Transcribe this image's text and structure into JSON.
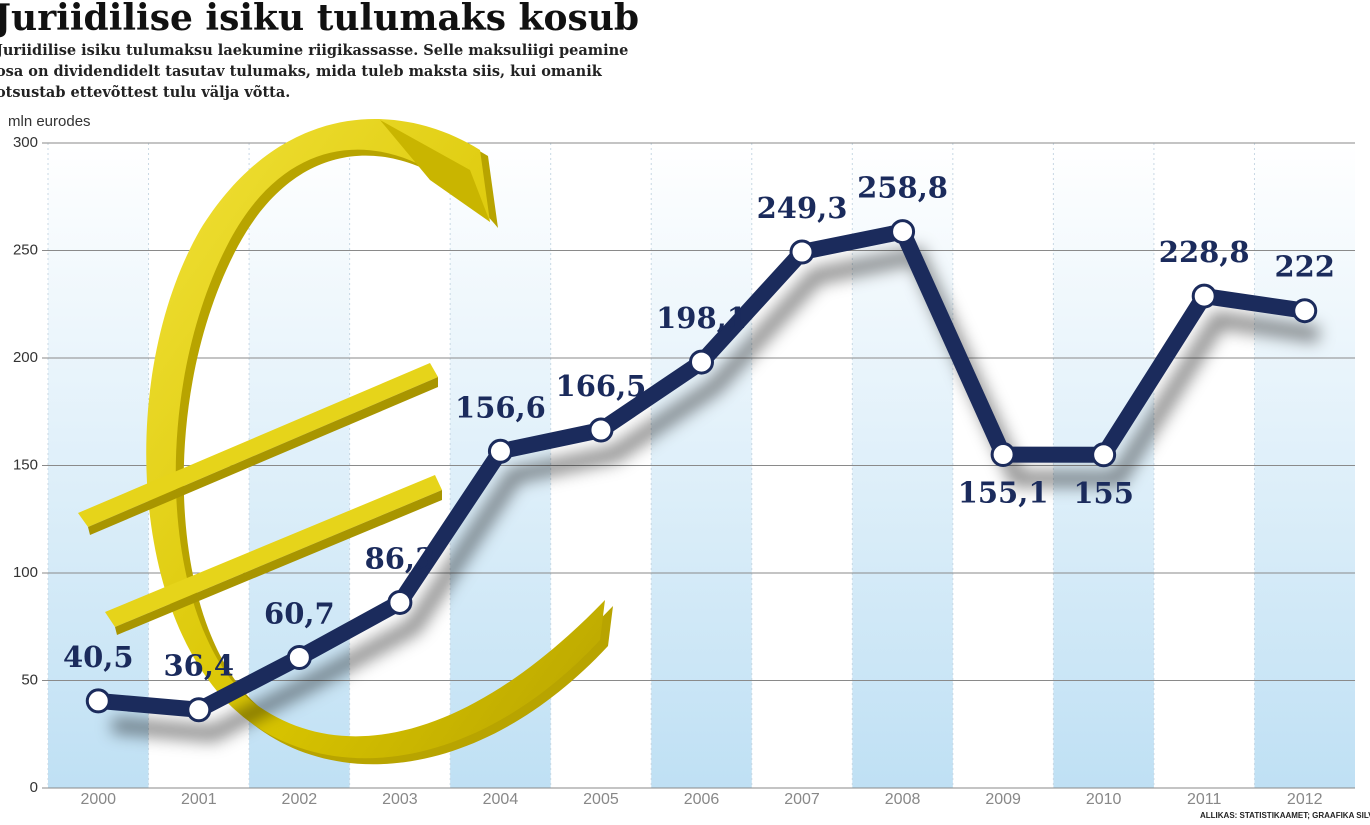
{
  "chart_data": {
    "type": "line",
    "title": "Juriidilise isiku tulumaks kosub",
    "subtitle": "Juriidilise isiku tulumaksu laekumine riigikassasse. Selle maksuliigi peamine osa on dividendidelt tasutav tulumaks, mida tuleb maksta siis, kui omanik otsustab ettevõttest tulu välja võtta.",
    "y_label": "mln eurodes",
    "source": "ALLIKAS: STATISTIKAAMET; GRAAFIKA SILVER AL",
    "categories": [
      "2000",
      "2001",
      "2002",
      "2003",
      "2004",
      "2005",
      "2006",
      "2007",
      "2008",
      "2009",
      "2010",
      "2011",
      "2012"
    ],
    "values": [
      40.5,
      36.4,
      60.7,
      86.3,
      156.6,
      166.5,
      198.1,
      249.3,
      258.8,
      155.1,
      155,
      228.8,
      222
    ],
    "value_labels": [
      "40,5",
      "36,4",
      "60,7",
      "86,3",
      "156,6",
      "166,5",
      "198,1",
      "249,3",
      "258,8",
      "155,1",
      "155",
      "228,8",
      "222"
    ],
    "color": "#1b2b5c",
    "ylim": [
      0,
      300
    ],
    "yticks": [
      0,
      50,
      100,
      150,
      200,
      250,
      300
    ],
    "grid": true
  }
}
